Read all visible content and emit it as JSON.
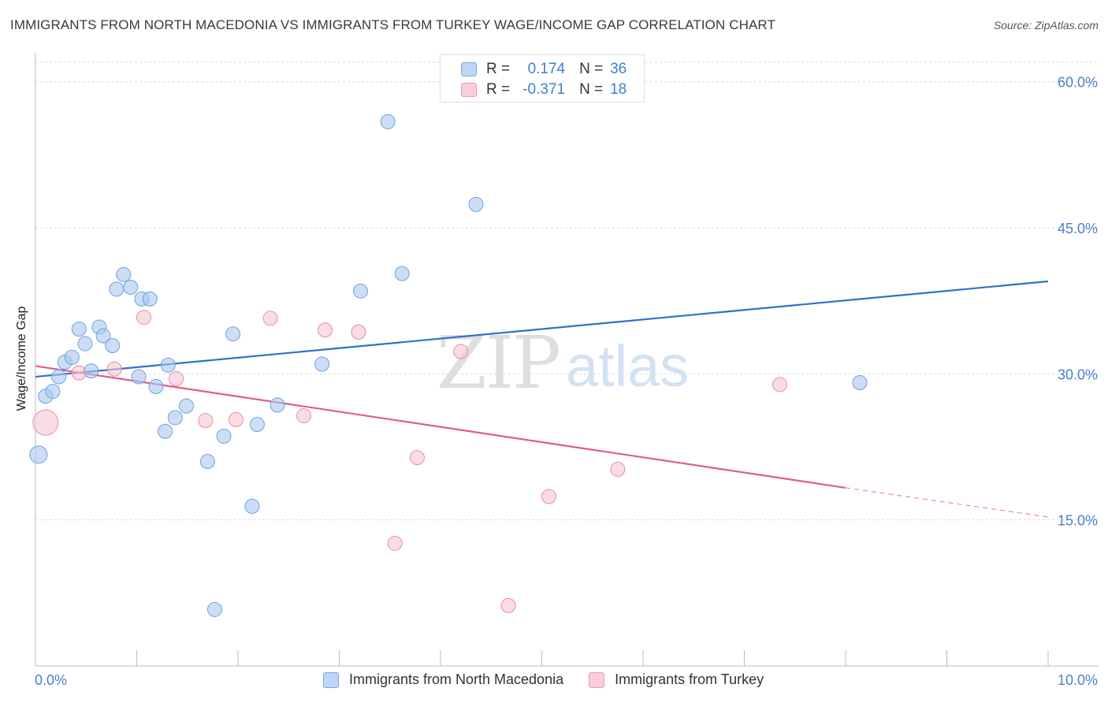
{
  "chart_data": {
    "type": "scatter",
    "title": "IMMIGRANTS FROM NORTH MACEDONIA VS IMMIGRANTS FROM TURKEY WAGE/INCOME GAP CORRELATION CHART",
    "source": "Source: ZipAtlas.com",
    "xlabel": "",
    "ylabel": "Wage/Income Gap",
    "xlim": [
      0,
      10
    ],
    "ylim": [
      0,
      62
    ],
    "x_tick_labels": [
      "0.0%",
      "10.0%"
    ],
    "y_ticks": [
      {
        "value": 15,
        "label": "15.0%"
      },
      {
        "value": 30,
        "label": "30.0%"
      },
      {
        "value": 45,
        "label": "45.0%"
      },
      {
        "value": 60,
        "label": "60.0%"
      }
    ],
    "watermark": {
      "zip": "ZIP",
      "atlas": "atlas"
    },
    "legend_stats": [
      {
        "r_label": "R =",
        "r_value": "0.174",
        "n_label": "N =",
        "n_value": "36"
      },
      {
        "r_label": "R =",
        "r_value": "-0.371",
        "n_label": "N =",
        "n_value": "18"
      }
    ],
    "series": [
      {
        "name": "Immigrants from North Macedonia",
        "color": "#a8c8f0",
        "stroke": "#6fa0dc",
        "line_color": "#2f72c8",
        "trend": {
          "x1": 0.0,
          "y1": 29.7,
          "x2": 10.0,
          "y2": 39.5
        },
        "points": [
          [
            0.03,
            21.7,
            11
          ],
          [
            0.1,
            27.7,
            9
          ],
          [
            0.17,
            28.2,
            9
          ],
          [
            0.23,
            29.7,
            9
          ],
          [
            0.29,
            31.2,
            9
          ],
          [
            0.36,
            31.7,
            9
          ],
          [
            0.43,
            34.6,
            9
          ],
          [
            0.49,
            33.1,
            9
          ],
          [
            0.55,
            30.3,
            9
          ],
          [
            0.63,
            34.8,
            9
          ],
          [
            0.67,
            33.9,
            9
          ],
          [
            0.76,
            32.9,
            9
          ],
          [
            0.8,
            38.7,
            9
          ],
          [
            0.87,
            40.2,
            9
          ],
          [
            0.94,
            38.9,
            9
          ],
          [
            1.02,
            29.7,
            9
          ],
          [
            1.05,
            37.7,
            9
          ],
          [
            1.13,
            37.7,
            9
          ],
          [
            1.19,
            28.7,
            9
          ],
          [
            1.28,
            24.1,
            9
          ],
          [
            1.31,
            30.9,
            9
          ],
          [
            1.38,
            25.5,
            9
          ],
          [
            1.49,
            26.7,
            9
          ],
          [
            1.7,
            21.0,
            9
          ],
          [
            1.77,
            5.8,
            9
          ],
          [
            1.86,
            23.6,
            9
          ],
          [
            1.95,
            34.1,
            9
          ],
          [
            2.14,
            16.4,
            9
          ],
          [
            2.19,
            24.8,
            9
          ],
          [
            2.39,
            26.8,
            9
          ],
          [
            2.83,
            31.0,
            9
          ],
          [
            3.21,
            38.5,
            9
          ],
          [
            3.48,
            55.9,
            9
          ],
          [
            3.62,
            40.3,
            9
          ],
          [
            4.35,
            47.4,
            9
          ],
          [
            8.14,
            29.1,
            9
          ]
        ]
      },
      {
        "name": "Immigrants from Turkey",
        "color": "#f7c4d3",
        "stroke": "#e98aa8",
        "line_color": "#e05c8c",
        "trend": {
          "x1": 0.0,
          "y1": 30.8,
          "x2": 8.0,
          "y2": 18.3
        },
        "trend_dashed": {
          "x1": 8.0,
          "y1": 18.3,
          "x2": 10.0,
          "y2": 15.3
        },
        "points": [
          [
            0.1,
            25.0,
            16
          ],
          [
            0.43,
            30.1,
            9
          ],
          [
            0.78,
            30.5,
            9
          ],
          [
            1.07,
            35.8,
            9
          ],
          [
            1.39,
            29.5,
            9
          ],
          [
            1.68,
            25.2,
            9
          ],
          [
            1.98,
            25.3,
            9
          ],
          [
            2.32,
            35.7,
            9
          ],
          [
            2.65,
            25.7,
            9
          ],
          [
            2.86,
            34.5,
            9
          ],
          [
            3.19,
            34.3,
            9
          ],
          [
            3.55,
            12.6,
            9
          ],
          [
            3.77,
            21.4,
            9
          ],
          [
            4.2,
            32.3,
            9
          ],
          [
            4.67,
            6.2,
            9
          ],
          [
            5.07,
            17.4,
            9
          ],
          [
            5.75,
            20.2,
            9
          ],
          [
            7.35,
            28.9,
            9
          ]
        ]
      }
    ]
  }
}
